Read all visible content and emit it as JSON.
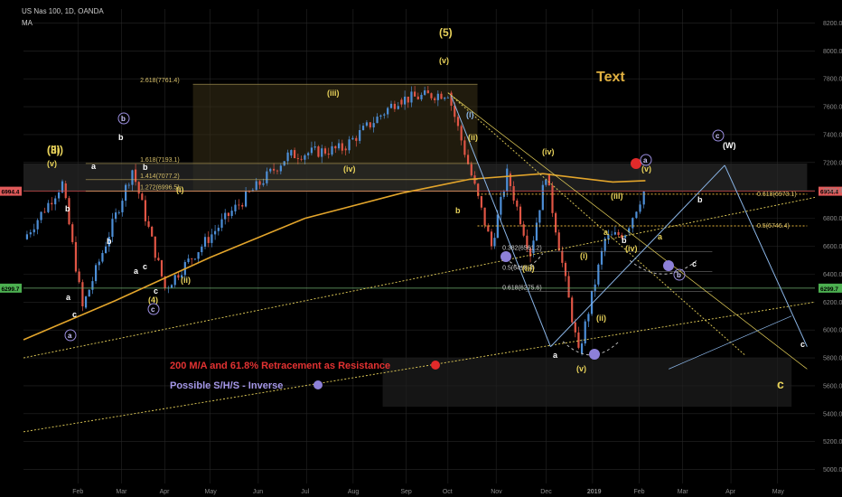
{
  "header": {
    "symbol": "US Nas 100, 1D, OANDA",
    "indicator": "MA"
  },
  "colors": {
    "up": "#4d8fd8",
    "down": "#e05545",
    "ma": "#e3a52b",
    "fib": "#d8c06a",
    "wave": "#e8d25a",
    "blue": "#8bb6e8",
    "purple": "#9b8ee0",
    "red": "#e02a2a",
    "grid": "#262626"
  },
  "price_badges": [
    {
      "value": "6994.4",
      "color": "#e05a5a"
    },
    {
      "value": "6299.7",
      "color": "#4caf50"
    }
  ],
  "annotations": {
    "text_label": "Text",
    "resistance_note": "200 M/A and 61.8% Retracement as Resistance",
    "shs_note": "Possible S/H/S - Inverse"
  },
  "fib_labels": {
    "top": [
      "2.618(7761.4)",
      "1.618(7193.1)",
      "1.414(7077.2)",
      "1.272(6996.5)"
    ],
    "retrace": [
      "0.382(6561.2)",
      "0.5(6418.4)",
      "0.618(6275.6)"
    ],
    "right": [
      "0.618(6973.1)",
      "0.5(6746.4)"
    ]
  },
  "wave_labels": [
    "(3)",
    "(v)",
    "a",
    "b",
    "a",
    "c",
    "b",
    "c",
    "b",
    "a",
    "b",
    "(4)",
    "c",
    "(i)",
    "(ii)",
    "(iii)",
    "(iv)",
    "(v)",
    "(5)",
    "(i)",
    "(ii)",
    "(iii)",
    "(iv)",
    "(v)",
    "(ii)",
    "(i)",
    "(iii)",
    "(iv)",
    "(v)",
    "a",
    "b",
    "c",
    "a",
    "b",
    "c",
    "c",
    "(W)",
    "b",
    "a",
    "(iii)"
  ],
  "chart_data": {
    "type": "line",
    "title": "US Nas 100, 1D, OANDA",
    "ylim": [
      4900,
      8300
    ],
    "y_ticks": [
      5000,
      5200,
      5400,
      5600,
      5800,
      6000,
      6200,
      6400,
      6600,
      6800,
      7000,
      7200,
      7400,
      7600,
      7800,
      8000,
      8200
    ],
    "x_ticks": [
      "Feb",
      "Mar",
      "Apr",
      "May",
      "Jun",
      "Jul",
      "Aug",
      "Sep",
      "Oct",
      "Nov",
      "Dec",
      "2019",
      "Feb",
      "Mar",
      "Apr",
      "May"
    ],
    "series": [
      {
        "name": "Price",
        "x": [
          "2018-01-01",
          "2018-01-26",
          "2018-02-08",
          "2018-03-12",
          "2018-04-02",
          "2018-05-15",
          "2018-06-20",
          "2018-07-25",
          "2018-08-30",
          "2018-10-01",
          "2018-10-29",
          "2018-11-08",
          "2018-11-23",
          "2018-12-03",
          "2018-12-24",
          "2019-01-10",
          "2019-01-23",
          "2019-02-04"
        ],
        "values": [
          6650,
          7050,
          6160,
          7150,
          6300,
          6850,
          7250,
          7300,
          7650,
          7700,
          6600,
          7120,
          6550,
          7120,
          5830,
          6650,
          6700,
          6994
        ]
      },
      {
        "name": "MA",
        "x": [
          "2018-01-01",
          "2018-03-01",
          "2018-05-01",
          "2018-07-01",
          "2018-09-01",
          "2018-10-15",
          "2018-12-01",
          "2019-01-15",
          "2019-02-05"
        ],
        "values": [
          5930,
          6210,
          6520,
          6800,
          6980,
          7080,
          7120,
          7060,
          7070
        ]
      }
    ]
  }
}
